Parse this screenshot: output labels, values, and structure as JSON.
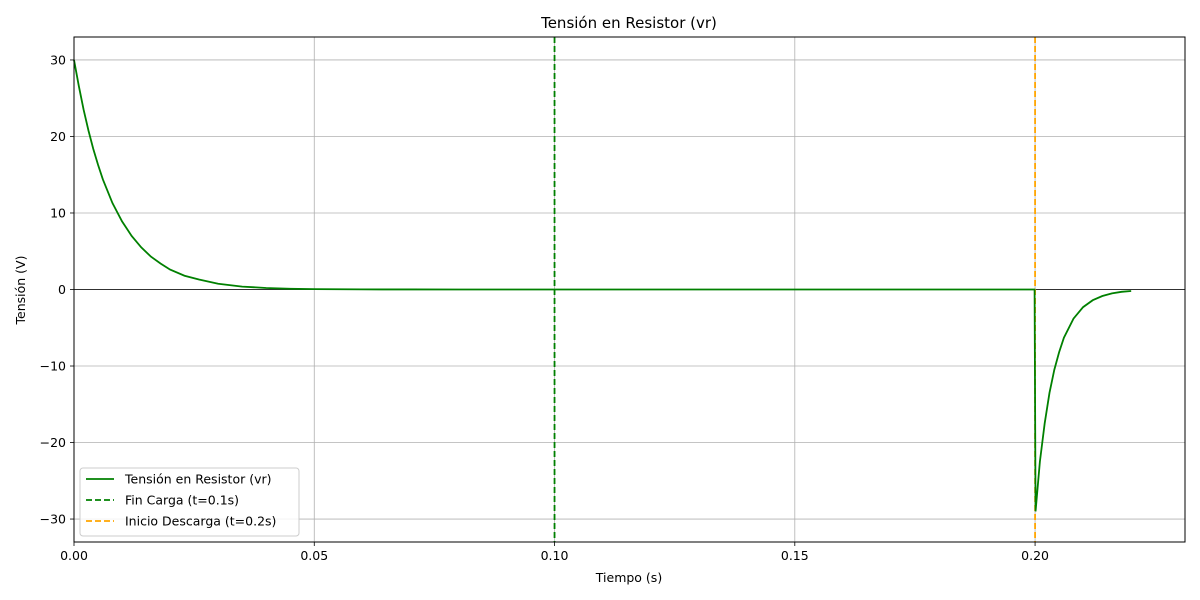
{
  "chart_data": {
    "type": "line",
    "title": "Tensión en Resistor (vr)",
    "xlabel": "Tiempo (s)",
    "ylabel": "Tensión (V)",
    "xlim": [
      0,
      0.2312
    ],
    "ylim": [
      -33,
      33
    ],
    "xticks": [
      0.0,
      0.05,
      0.1,
      0.15,
      0.2
    ],
    "xtick_labels": [
      "0.00",
      "0.05",
      "0.10",
      "0.15",
      "0.20"
    ],
    "yticks": [
      30,
      20,
      10,
      0,
      -10,
      -20,
      -30
    ],
    "ytick_labels": [
      "30",
      "20",
      "10",
      "0",
      "−10",
      "−20",
      "−30"
    ],
    "grid": true,
    "zero_line": true,
    "legend_position": "lower left",
    "series": [
      {
        "name": "Tensión en Resistor (vr)",
        "style": "solid",
        "color": "#008000",
        "x": [
          0.0,
          0.001,
          0.002,
          0.003,
          0.004,
          0.005,
          0.006,
          0.008,
          0.01,
          0.012,
          0.014,
          0.016,
          0.018,
          0.02,
          0.023,
          0.026,
          0.03,
          0.035,
          0.04,
          0.045,
          0.05,
          0.06,
          0.07,
          0.08,
          0.09,
          0.1,
          0.12,
          0.14,
          0.16,
          0.18,
          0.1999,
          0.2001,
          0.201,
          0.202,
          0.203,
          0.204,
          0.205,
          0.206,
          0.208,
          0.21,
          0.212,
          0.214,
          0.216,
          0.218,
          0.22
        ],
        "y": [
          30.0,
          26.6,
          23.5,
          20.8,
          18.4,
          16.3,
          14.4,
          11.3,
          8.9,
          7.0,
          5.5,
          4.3,
          3.4,
          2.6,
          1.8,
          1.3,
          0.75,
          0.38,
          0.2,
          0.1,
          0.05,
          0.015,
          0.005,
          0.0,
          0.0,
          0.0,
          0.0,
          0.0,
          0.0,
          0.0,
          0.0,
          -29.0,
          -22.5,
          -17.5,
          -13.5,
          -10.5,
          -8.2,
          -6.3,
          -3.8,
          -2.3,
          -1.4,
          -0.85,
          -0.5,
          -0.3,
          -0.2
        ]
      },
      {
        "name": "Fin Carga (t=0.1s)",
        "style": "dashed",
        "color": "#008000",
        "vline_x": 0.1
      },
      {
        "name": "Inicio Descarga (t=0.2s)",
        "style": "dashed",
        "color": "#FFA500",
        "vline_x": 0.2
      }
    ]
  }
}
